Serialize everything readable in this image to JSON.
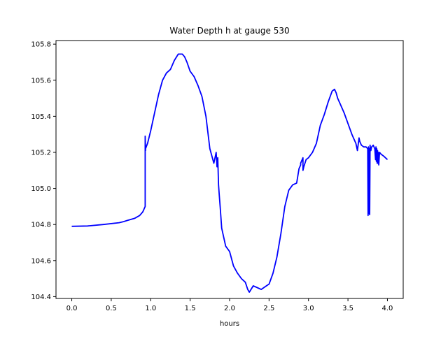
{
  "chart_data": {
    "type": "line",
    "title": "Water Depth h at gauge 530",
    "xlabel": "hours",
    "ylabel": "",
    "xlim": [
      -0.2,
      4.2
    ],
    "ylim": [
      104.39,
      105.82
    ],
    "xticks": [
      0.0,
      0.5,
      1.0,
      1.5,
      2.0,
      2.5,
      3.0,
      3.5,
      4.0
    ],
    "xtick_labels": [
      "0.0",
      "0.5",
      "1.0",
      "1.5",
      "2.0",
      "2.5",
      "3.0",
      "3.5",
      "4.0"
    ],
    "yticks": [
      104.4,
      104.6,
      104.8,
      105.0,
      105.2,
      105.4,
      105.6,
      105.8
    ],
    "ytick_labels": [
      "104.4",
      "104.6",
      "104.8",
      "105.0",
      "105.2",
      "105.4",
      "105.6",
      "105.8"
    ],
    "grid": false,
    "series": [
      {
        "color": "#0000ff",
        "x": [
          0.0,
          0.2,
          0.4,
          0.6,
          0.65,
          0.7,
          0.8,
          0.86,
          0.9,
          0.93,
          0.93,
          0.935,
          0.935,
          0.96,
          1.0,
          1.05,
          1.1,
          1.15,
          1.2,
          1.25,
          1.3,
          1.35,
          1.4,
          1.43,
          1.46,
          1.5,
          1.55,
          1.6,
          1.65,
          1.7,
          1.75,
          1.8,
          1.83,
          1.84,
          1.85,
          1.86,
          1.87,
          1.88,
          1.9,
          1.95,
          2.0,
          2.05,
          2.1,
          2.15,
          2.2,
          2.23,
          2.25,
          2.3,
          2.35,
          2.4,
          2.45,
          2.5,
          2.55,
          2.6,
          2.65,
          2.7,
          2.75,
          2.8,
          2.85,
          2.88,
          2.9,
          2.9,
          2.93,
          2.93,
          2.94,
          2.97,
          3.0,
          3.05,
          3.1,
          3.15,
          3.2,
          3.25,
          3.3,
          3.33,
          3.35,
          3.37,
          3.4,
          3.45,
          3.5,
          3.55,
          3.6,
          3.62,
          3.64,
          3.65,
          3.67,
          3.7,
          3.73,
          3.75,
          3.755,
          3.76,
          3.765,
          3.77,
          3.775,
          3.78,
          3.785,
          3.79,
          3.8,
          3.82,
          3.84,
          3.85,
          3.855,
          3.86,
          3.865,
          3.87,
          3.875,
          3.88,
          3.885,
          3.89,
          3.9,
          3.92,
          3.95,
          4.0
        ],
        "y": [
          104.79,
          104.792,
          104.8,
          104.81,
          104.815,
          104.822,
          104.835,
          104.85,
          104.87,
          104.9,
          105.29,
          105.21,
          105.22,
          105.25,
          105.32,
          105.42,
          105.52,
          105.6,
          105.64,
          105.66,
          105.71,
          105.745,
          105.745,
          105.73,
          105.7,
          105.65,
          105.62,
          105.57,
          105.51,
          105.4,
          105.22,
          105.14,
          105.2,
          105.12,
          105.17,
          105.02,
          104.96,
          104.9,
          104.78,
          104.68,
          104.65,
          104.57,
          104.53,
          104.5,
          104.48,
          104.44,
          104.425,
          104.46,
          104.45,
          104.44,
          104.455,
          104.47,
          104.53,
          104.62,
          104.75,
          104.9,
          104.99,
          105.02,
          105.03,
          105.11,
          105.13,
          105.14,
          105.17,
          105.1,
          105.12,
          105.16,
          105.17,
          105.2,
          105.25,
          105.35,
          105.41,
          105.48,
          105.54,
          105.55,
          105.53,
          105.5,
          105.47,
          105.42,
          105.36,
          105.3,
          105.25,
          105.21,
          105.28,
          105.26,
          105.24,
          105.23,
          105.23,
          105.22,
          104.85,
          105.23,
          104.86,
          105.22,
          104.855,
          105.24,
          105.22,
          105.21,
          105.23,
          105.24,
          105.22,
          105.16,
          105.23,
          105.15,
          105.22,
          105.14,
          105.21,
          105.14,
          105.2,
          105.13,
          105.2,
          105.19,
          105.18,
          105.16
        ]
      }
    ]
  }
}
